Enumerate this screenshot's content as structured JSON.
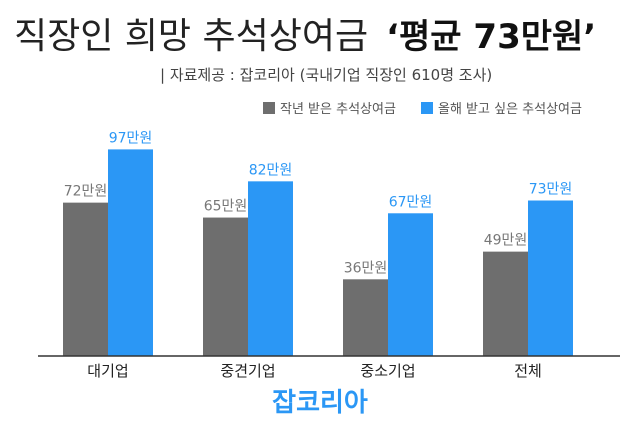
{
  "header": {
    "title": "직장인 희망 추석상여금",
    "highlight": "‘평균 73만원’",
    "source": "| 자료제공 : 잡코리아 (국내기업 직장인 610명 조사)"
  },
  "footer": {
    "logo_text": "잡코리아"
  },
  "colors": {
    "last_year": "#6e6e6e",
    "this_year": "#2b97f5",
    "axis": "#333333",
    "logo": "#2b97f5"
  },
  "chart_data": {
    "type": "bar",
    "categories": [
      "대기업",
      "중견기업",
      "중소기업",
      "전체"
    ],
    "series": [
      {
        "name": "작년 받은 추석상여금",
        "values": [
          72,
          65,
          36,
          49
        ],
        "labels": [
          "72만원",
          "65만원",
          "36만원",
          "49만원"
        ],
        "color": "#6e6e6e"
      },
      {
        "name": "올해 받고 싶은 추석상여금",
        "values": [
          97,
          82,
          67,
          73
        ],
        "labels": [
          "97만원",
          "82만원",
          "67만원",
          "73만원"
        ],
        "color": "#2b97f5"
      }
    ],
    "ylim": [
      0,
      100
    ],
    "grid": false,
    "legend_position": "top-right"
  }
}
